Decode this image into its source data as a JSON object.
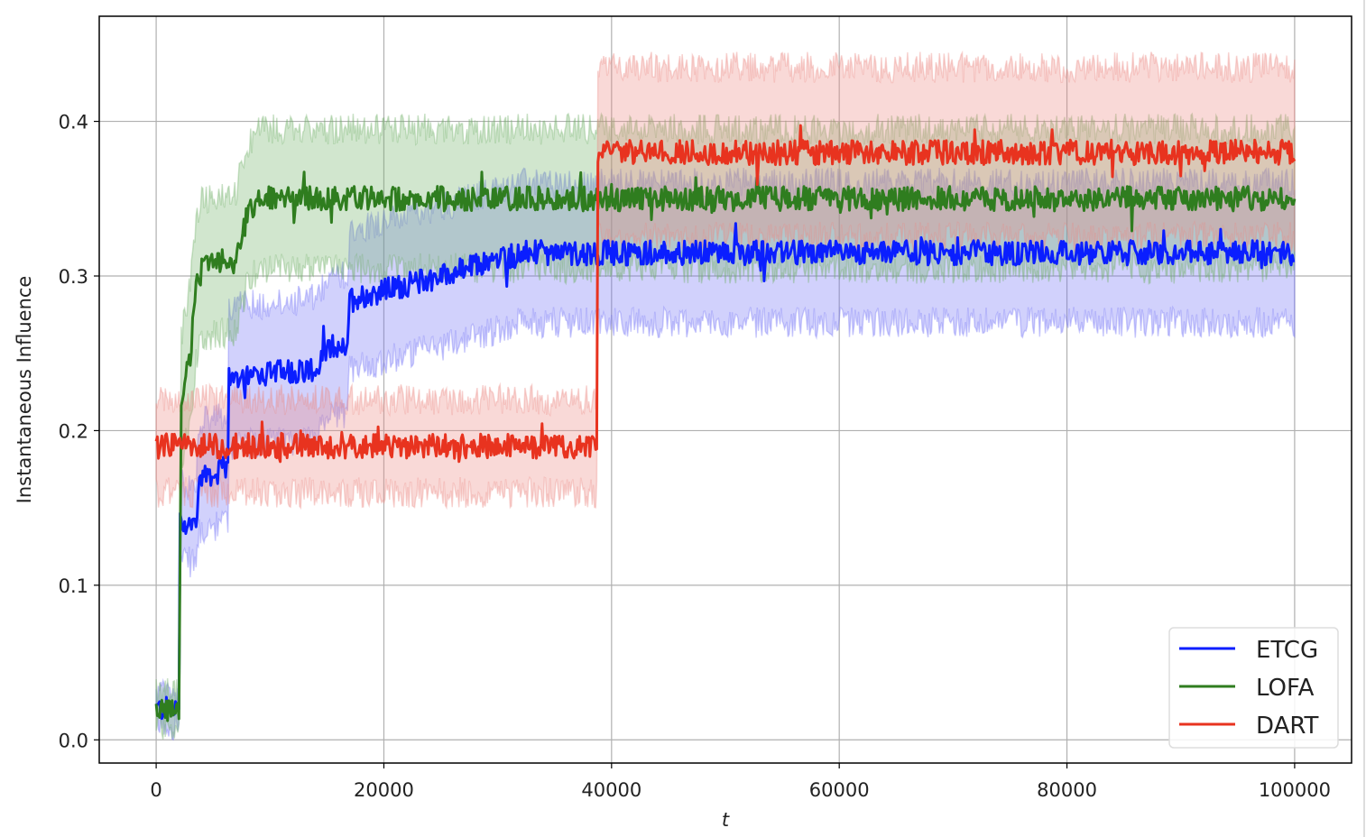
{
  "chart_data": {
    "type": "line",
    "title": "",
    "xlabel": "t",
    "ylabel": "Instantaneous Influence",
    "xlim": [
      -5000,
      105000
    ],
    "ylim": [
      -0.015,
      0.468
    ],
    "xticks": [
      0,
      20000,
      40000,
      60000,
      80000,
      100000
    ],
    "xtick_labels": [
      "0",
      "20000",
      "40000",
      "60000",
      "80000",
      "100000"
    ],
    "yticks": [
      0.0,
      0.1,
      0.2,
      0.3,
      0.4
    ],
    "ytick_labels": [
      "0.0",
      "0.1",
      "0.2",
      "0.3",
      "0.4"
    ],
    "grid": true,
    "legend_position": "bottom-right",
    "series": [
      {
        "name": "ETCG",
        "color": "#0a1eff",
        "band_color": "#6f6ff5",
        "x": [
          0,
          2000,
          2100,
          3500,
          3800,
          6300,
          6400,
          14000,
          15500,
          16800,
          17000,
          25000,
          32000,
          40000,
          100000
        ],
        "mean": [
          0.02,
          0.02,
          0.14,
          0.14,
          0.17,
          0.175,
          0.235,
          0.24,
          0.255,
          0.255,
          0.285,
          0.3,
          0.315,
          0.315,
          0.315
        ],
        "band_halfwidth": [
          0.01,
          0.01,
          0.025,
          0.025,
          0.035,
          0.035,
          0.045,
          0.045,
          0.045,
          0.045,
          0.045,
          0.045,
          0.045,
          0.045,
          0.045
        ]
      },
      {
        "name": "LOFA",
        "color": "#2f7d1f",
        "band_color": "#6fb067",
        "x": [
          0,
          2000,
          2200,
          3000,
          3500,
          4000,
          7000,
          8000,
          9000,
          40000,
          100000
        ],
        "mean": [
          0.02,
          0.02,
          0.22,
          0.25,
          0.29,
          0.305,
          0.31,
          0.34,
          0.35,
          0.35,
          0.35
        ],
        "band_halfwidth": [
          0.01,
          0.01,
          0.04,
          0.045,
          0.045,
          0.045,
          0.045,
          0.045,
          0.045,
          0.045,
          0.045
        ]
      },
      {
        "name": "DART",
        "color": "#e8331f",
        "band_color": "#ec8a84",
        "x": [
          0,
          38700,
          38800,
          100000
        ],
        "mean": [
          0.19,
          0.19,
          0.38,
          0.38
        ],
        "band_halfwidth": [
          0.03,
          0.03,
          0.055,
          0.055
        ]
      }
    ]
  }
}
